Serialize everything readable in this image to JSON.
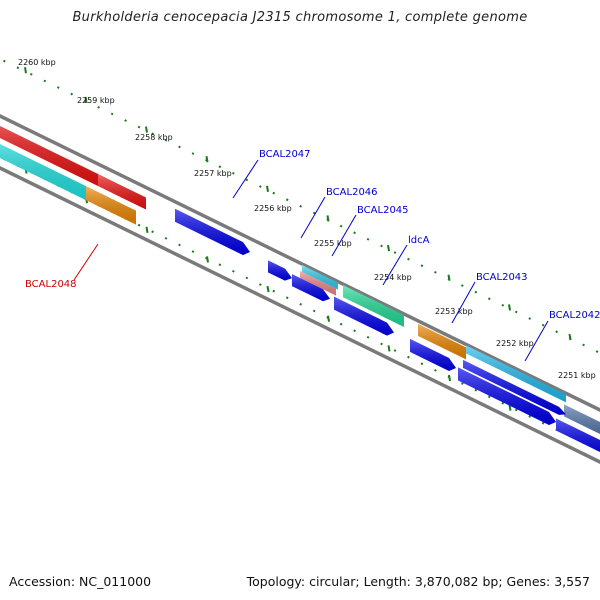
{
  "title": "Burkholderia cenocepacia J2315 chromosome 1, complete genome",
  "footer": {
    "accession": "Accession: NC_011000",
    "summary": "Topology: circular; Length: 3,870,082 bp; Genes: 3,557"
  },
  "colors": {
    "backbone": "#7a7a7a",
    "tick": "#1a7a1a",
    "label_forward": "#0000cc",
    "label_reverse": "#cc0000"
  },
  "ticks": [
    {
      "label": "2260 kbp"
    },
    {
      "label": "2259 kbp"
    },
    {
      "label": "2258 kbp"
    },
    {
      "label": "2257 kbp"
    },
    {
      "label": "2256 kbp"
    },
    {
      "label": "2255 kbp"
    },
    {
      "label": "2254 kbp"
    },
    {
      "label": "2253 kbp"
    },
    {
      "label": "2252 kbp"
    },
    {
      "label": "2251 kbp"
    }
  ],
  "genes": [
    {
      "name": "BCAL2047",
      "color": "#0000ee",
      "strand": "forward"
    },
    {
      "name": "BCAL2046",
      "color": "#33ccee",
      "strand": "forward"
    },
    {
      "name": "BCAL2045",
      "color": "#ee8888",
      "strand": "forward"
    },
    {
      "name": "ldcA",
      "color": "#22dd99",
      "strand": "forward"
    },
    {
      "name": "BCAL2043",
      "color": "#ee8800",
      "strand": "forward"
    },
    {
      "name": "BCAL2042",
      "color": "#22bbee",
      "strand": "forward"
    },
    {
      "name": "BCAL2048",
      "color": "#ee8800",
      "strand": "reverse"
    }
  ]
}
